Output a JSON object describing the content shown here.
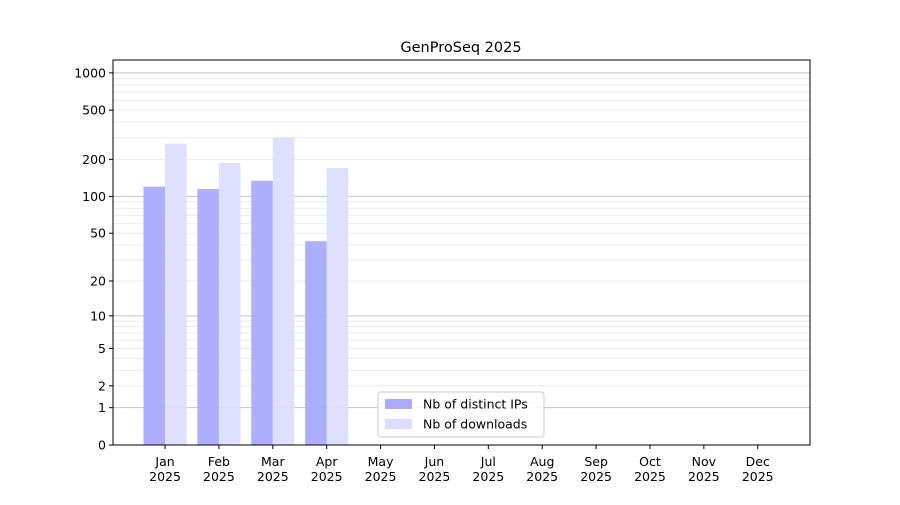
{
  "chart_data": {
    "type": "bar",
    "title": "GenProSeq 2025",
    "xlabel": "",
    "ylabel": "",
    "yscale": "log(1+y)",
    "ylim": [
      0,
      1270
    ],
    "yticks": [
      0,
      1,
      2,
      5,
      10,
      20,
      50,
      100,
      200,
      500,
      1000
    ],
    "grid": true,
    "legend_position": "lower-center",
    "categories": [
      "Jan\n2025",
      "Feb\n2025",
      "Mar\n2025",
      "Apr\n2025",
      "May\n2025",
      "Jun\n2025",
      "Jul\n2025",
      "Aug\n2025",
      "Sep\n2025",
      "Oct\n2025",
      "Nov\n2025",
      "Dec\n2025"
    ],
    "series": [
      {
        "name": "Nb of distinct IPs",
        "color": "#aaaaff",
        "values": [
          120,
          115,
          134,
          43,
          0,
          0,
          0,
          0,
          0,
          0,
          0,
          0
        ]
      },
      {
        "name": "Nb of downloads",
        "color": "#ddddff",
        "values": [
          268,
          187,
          300,
          170,
          0,
          0,
          0,
          0,
          0,
          0,
          0,
          0
        ]
      }
    ]
  }
}
